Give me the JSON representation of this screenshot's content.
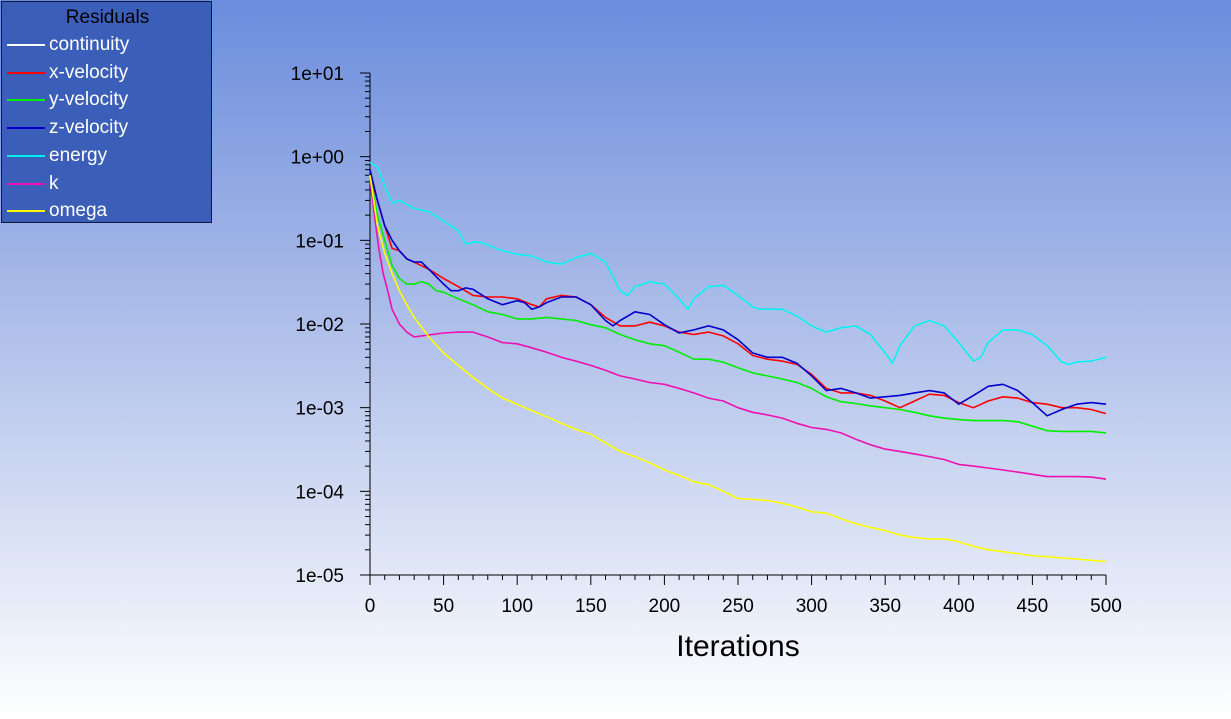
{
  "legend": {
    "title": "Residuals",
    "items": [
      {
        "label": "continuity",
        "color": "#ffffff"
      },
      {
        "label": "x-velocity",
        "color": "#ff0000"
      },
      {
        "label": "y-velocity",
        "color": "#00ee00"
      },
      {
        "label": "z-velocity",
        "color": "#0000cc"
      },
      {
        "label": "energy",
        "color": "#00eeee"
      },
      {
        "label": "k",
        "color": "#ee10b0"
      },
      {
        "label": "omega",
        "color": "#ffff00"
      }
    ]
  },
  "chart_data": {
    "type": "line",
    "title": "",
    "xlabel": "Iterations",
    "ylabel": "",
    "yscale": "log",
    "xlim": [
      0,
      500
    ],
    "ylim": [
      1e-05,
      10
    ],
    "xticks": [
      0,
      50,
      100,
      150,
      200,
      250,
      300,
      350,
      400,
      450,
      500
    ],
    "yticks": [
      {
        "value": 10,
        "label": "1e+01"
      },
      {
        "value": 1,
        "label": "1e+00"
      },
      {
        "value": 0.1,
        "label": "1e-01"
      },
      {
        "value": 0.01,
        "label": "1e-02"
      },
      {
        "value": 0.001,
        "label": "1e-03"
      },
      {
        "value": 0.0001,
        "label": "1e-04"
      },
      {
        "value": 1e-05,
        "label": "1e-05"
      }
    ],
    "grid": false,
    "legend_position": "top-left",
    "series": [
      {
        "name": "continuity",
        "color": "#ffffff",
        "x": [
          0,
          5,
          10,
          15,
          20,
          25,
          30,
          40,
          50,
          60,
          65,
          70,
          75,
          80,
          90,
          100,
          110,
          120,
          130,
          140,
          150,
          160,
          170,
          175,
          180,
          190,
          200,
          210,
          216,
          220,
          230,
          240,
          250,
          260,
          265,
          270,
          280,
          290,
          300,
          310,
          320,
          330,
          340,
          350,
          355,
          360,
          370,
          380,
          390,
          400,
          410,
          415,
          420,
          430,
          440,
          450,
          460,
          470,
          475,
          480,
          490,
          500
        ],
        "y": [
          0.85,
          0.75,
          0.45,
          0.28,
          0.3,
          0.27,
          0.24,
          0.22,
          0.17,
          0.13,
          0.09,
          0.095,
          0.095,
          0.088,
          0.075,
          0.068,
          0.065,
          0.055,
          0.052,
          0.062,
          0.07,
          0.055,
          0.025,
          0.022,
          0.028,
          0.032,
          0.03,
          0.02,
          0.015,
          0.02,
          0.028,
          0.029,
          0.022,
          0.016,
          0.015,
          0.015,
          0.015,
          0.0125,
          0.0095,
          0.008,
          0.009,
          0.0095,
          0.0075,
          0.0045,
          0.0034,
          0.0055,
          0.0095,
          0.011,
          0.0095,
          0.006,
          0.0036,
          0.004,
          0.006,
          0.0085,
          0.0085,
          0.0075,
          0.0055,
          0.0035,
          0.0033,
          0.0035,
          0.0036,
          0.004
        ]
      },
      {
        "name": "x-velocity",
        "color": "#ff0000",
        "x": [
          0,
          5,
          10,
          15,
          20,
          25,
          30,
          40,
          50,
          60,
          70,
          80,
          90,
          100,
          110,
          115,
          120,
          130,
          140,
          150,
          160,
          170,
          180,
          190,
          200,
          210,
          220,
          230,
          240,
          250,
          260,
          270,
          280,
          290,
          300,
          310,
          320,
          330,
          340,
          350,
          360,
          370,
          380,
          390,
          400,
          410,
          420,
          430,
          440,
          450,
          460,
          470,
          480,
          490,
          500
        ],
        "y": [
          0.6,
          0.3,
          0.15,
          0.08,
          0.075,
          0.06,
          0.055,
          0.045,
          0.035,
          0.028,
          0.022,
          0.021,
          0.021,
          0.02,
          0.017,
          0.016,
          0.02,
          0.022,
          0.021,
          0.017,
          0.012,
          0.0095,
          0.0095,
          0.0105,
          0.0095,
          0.008,
          0.0075,
          0.008,
          0.0072,
          0.0058,
          0.0042,
          0.0038,
          0.0036,
          0.0033,
          0.0025,
          0.0017,
          0.0015,
          0.0015,
          0.0014,
          0.0012,
          0.001,
          0.0012,
          0.00145,
          0.0014,
          0.00115,
          0.001,
          0.0012,
          0.00135,
          0.0013,
          0.00115,
          0.0011,
          0.001,
          0.001,
          0.00095,
          0.00085
        ]
      },
      {
        "name": "y-velocity",
        "color": "#00ee00",
        "x": [
          0,
          5,
          10,
          15,
          20,
          25,
          30,
          35,
          40,
          45,
          50,
          60,
          70,
          80,
          90,
          100,
          110,
          120,
          130,
          140,
          150,
          160,
          170,
          180,
          190,
          200,
          210,
          220,
          230,
          240,
          250,
          260,
          270,
          280,
          290,
          300,
          310,
          320,
          330,
          340,
          350,
          360,
          370,
          380,
          390,
          400,
          410,
          420,
          430,
          440,
          450,
          460,
          470,
          480,
          490,
          500
        ],
        "y": [
          0.6,
          0.2,
          0.1,
          0.05,
          0.035,
          0.03,
          0.03,
          0.032,
          0.03,
          0.025,
          0.024,
          0.02,
          0.017,
          0.014,
          0.013,
          0.0115,
          0.0115,
          0.012,
          0.0115,
          0.011,
          0.0098,
          0.009,
          0.0075,
          0.0065,
          0.0058,
          0.0055,
          0.0046,
          0.0038,
          0.0038,
          0.0035,
          0.003,
          0.0026,
          0.0024,
          0.0022,
          0.002,
          0.0017,
          0.00135,
          0.00118,
          0.00112,
          0.00105,
          0.001,
          0.00095,
          0.00088,
          0.0008,
          0.00075,
          0.00072,
          0.0007,
          0.0007,
          0.0007,
          0.00068,
          0.0006,
          0.00053,
          0.00052,
          0.00052,
          0.00052,
          0.0005
        ]
      },
      {
        "name": "z-velocity",
        "color": "#0000cc",
        "x": [
          0,
          5,
          10,
          15,
          20,
          25,
          30,
          35,
          40,
          50,
          55,
          60,
          65,
          70,
          80,
          90,
          100,
          105,
          110,
          115,
          120,
          130,
          140,
          150,
          160,
          165,
          170,
          180,
          190,
          200,
          210,
          220,
          230,
          240,
          250,
          260,
          270,
          280,
          290,
          300,
          310,
          320,
          330,
          340,
          350,
          360,
          370,
          380,
          390,
          400,
          410,
          420,
          430,
          440,
          450,
          460,
          470,
          480,
          490,
          500
        ],
        "y": [
          0.7,
          0.3,
          0.15,
          0.1,
          0.075,
          0.06,
          0.055,
          0.055,
          0.045,
          0.03,
          0.025,
          0.025,
          0.027,
          0.026,
          0.02,
          0.017,
          0.019,
          0.018,
          0.015,
          0.016,
          0.018,
          0.021,
          0.021,
          0.017,
          0.011,
          0.0095,
          0.011,
          0.014,
          0.013,
          0.0098,
          0.0078,
          0.0085,
          0.0095,
          0.0085,
          0.0065,
          0.0045,
          0.004,
          0.004,
          0.0034,
          0.0024,
          0.0016,
          0.0017,
          0.0015,
          0.0013,
          0.00135,
          0.0014,
          0.0015,
          0.0016,
          0.0015,
          0.0011,
          0.0014,
          0.0018,
          0.0019,
          0.0016,
          0.00115,
          0.0008,
          0.00095,
          0.0011,
          0.00115,
          0.0011
        ]
      },
      {
        "name": "energy",
        "color": "#00eeee",
        "x": [
          0,
          5,
          10,
          15,
          20,
          25,
          30,
          40,
          50,
          60,
          65,
          70,
          75,
          80,
          90,
          100,
          110,
          120,
          130,
          140,
          150,
          160,
          170,
          175,
          180,
          190,
          200,
          210,
          216,
          220,
          230,
          240,
          250,
          260,
          265,
          270,
          280,
          290,
          300,
          310,
          320,
          330,
          340,
          350,
          355,
          360,
          370,
          380,
          390,
          400,
          410,
          415,
          420,
          430,
          440,
          450,
          460,
          470,
          475,
          480,
          490,
          500
        ],
        "y": [
          0.85,
          0.75,
          0.45,
          0.28,
          0.3,
          0.27,
          0.24,
          0.22,
          0.17,
          0.13,
          0.09,
          0.095,
          0.095,
          0.088,
          0.075,
          0.068,
          0.065,
          0.055,
          0.052,
          0.062,
          0.07,
          0.055,
          0.025,
          0.022,
          0.028,
          0.032,
          0.03,
          0.02,
          0.015,
          0.02,
          0.028,
          0.029,
          0.022,
          0.016,
          0.015,
          0.015,
          0.015,
          0.0125,
          0.0095,
          0.008,
          0.009,
          0.0095,
          0.0075,
          0.0045,
          0.0034,
          0.0055,
          0.0095,
          0.011,
          0.0095,
          0.006,
          0.0036,
          0.004,
          0.006,
          0.0085,
          0.0085,
          0.0075,
          0.0055,
          0.0035,
          0.0033,
          0.0035,
          0.0036,
          0.004
        ]
      },
      {
        "name": "k",
        "color": "#ee10b0",
        "x": [
          0,
          3,
          6,
          9,
          12,
          15,
          20,
          25,
          30,
          35,
          40,
          50,
          60,
          70,
          80,
          90,
          100,
          110,
          120,
          130,
          140,
          150,
          160,
          170,
          180,
          190,
          200,
          210,
          220,
          230,
          240,
          250,
          260,
          270,
          280,
          290,
          300,
          310,
          320,
          330,
          340,
          350,
          360,
          370,
          380,
          390,
          400,
          410,
          420,
          430,
          440,
          450,
          460,
          470,
          480,
          490,
          500
        ],
        "y": [
          0.55,
          0.2,
          0.08,
          0.04,
          0.025,
          0.015,
          0.01,
          0.008,
          0.007,
          0.0072,
          0.0074,
          0.0078,
          0.008,
          0.008,
          0.007,
          0.006,
          0.0058,
          0.0052,
          0.0046,
          0.004,
          0.0036,
          0.0032,
          0.0028,
          0.0024,
          0.0022,
          0.002,
          0.0019,
          0.0017,
          0.0015,
          0.0013,
          0.0012,
          0.001,
          0.00088,
          0.00082,
          0.00075,
          0.00065,
          0.00058,
          0.00055,
          0.0005,
          0.00042,
          0.00036,
          0.00032,
          0.0003,
          0.00028,
          0.00026,
          0.00024,
          0.00021,
          0.0002,
          0.00019,
          0.00018,
          0.00017,
          0.00016,
          0.00015,
          0.00015,
          0.00015,
          0.000148,
          0.00014
        ]
      },
      {
        "name": "omega",
        "color": "#ffff00",
        "x": [
          0,
          5,
          10,
          15,
          20,
          25,
          30,
          40,
          50,
          60,
          70,
          80,
          90,
          100,
          110,
          120,
          130,
          140,
          150,
          160,
          170,
          180,
          190,
          200,
          210,
          220,
          230,
          240,
          250,
          260,
          270,
          280,
          290,
          300,
          310,
          320,
          330,
          340,
          350,
          360,
          370,
          380,
          390,
          400,
          410,
          420,
          430,
          440,
          450,
          460,
          470,
          480,
          490,
          500
        ],
        "y": [
          0.6,
          0.15,
          0.07,
          0.04,
          0.025,
          0.017,
          0.012,
          0.007,
          0.0045,
          0.0032,
          0.0023,
          0.0017,
          0.0013,
          0.0011,
          0.00092,
          0.00078,
          0.00065,
          0.00055,
          0.00048,
          0.00038,
          0.0003,
          0.00026,
          0.00022,
          0.00018,
          0.000155,
          0.00013,
          0.00012,
          0.0001,
          8.2e-05,
          8e-05,
          7.8e-05,
          7.2e-05,
          6.5e-05,
          5.7e-05,
          5.5e-05,
          4.7e-05,
          4.1e-05,
          3.7e-05,
          3.4e-05,
          3e-05,
          2.8e-05,
          2.7e-05,
          2.7e-05,
          2.5e-05,
          2.2e-05,
          2e-05,
          1.9e-05,
          1.8e-05,
          1.7e-05,
          1.65e-05,
          1.6e-05,
          1.55e-05,
          1.5e-05,
          1.45e-05
        ]
      }
    ]
  }
}
